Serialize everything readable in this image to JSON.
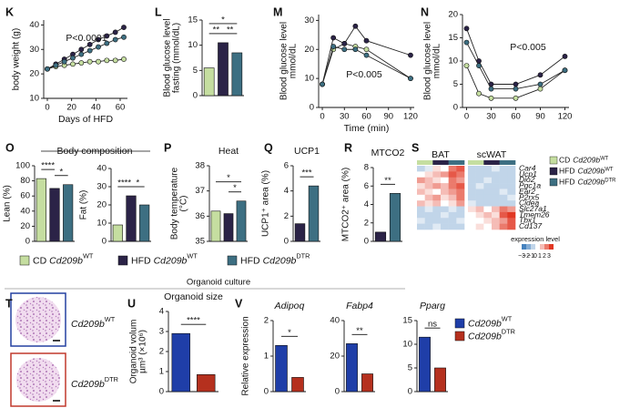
{
  "chart_data": [
    {
      "type": "line",
      "panel": "K",
      "xlabel": "Days of HFD",
      "ylabel": [
        "body weight (g)"
      ],
      "annotation": "P<0.0001",
      "x": [
        0,
        7,
        14,
        21,
        28,
        35,
        42,
        49,
        56,
        63
      ],
      "xlim": [
        -3,
        66
      ],
      "xticks": [
        0,
        20,
        40,
        60
      ],
      "ylim": [
        10,
        42
      ],
      "yticks": [
        10,
        20,
        30,
        40
      ],
      "series": [
        {
          "color": "#c5dea0",
          "values": [
            22,
            23,
            23.5,
            24,
            24.5,
            25,
            25,
            25.5,
            25.5,
            26
          ]
        },
        {
          "color": "#2b2347",
          "values": [
            22,
            24,
            26,
            28,
            30,
            32,
            34,
            35.5,
            37,
            39
          ]
        },
        {
          "color": "#3d6f82",
          "values": [
            22,
            23.5,
            25,
            26.5,
            28,
            29.5,
            31,
            32.5,
            34,
            35
          ]
        }
      ]
    },
    {
      "type": "bar",
      "panel": "L",
      "ylabel": [
        "Blood glucose level",
        "fasting (mmol/dL)"
      ],
      "ylim": [
        0,
        15
      ],
      "yticks": [
        0,
        5,
        10,
        15
      ],
      "values": [
        5.5,
        10.5,
        8.5
      ],
      "colors": [
        "#c5dea0",
        "#2b2347",
        "#3d6f82"
      ],
      "significance": [
        {
          "label": "**",
          "bars": [
            0,
            1
          ]
        },
        {
          "label": "**",
          "bars": [
            1,
            2
          ]
        },
        {
          "label": "*",
          "bars": [
            0,
            2
          ]
        }
      ]
    },
    {
      "type": "line",
      "panel": "M",
      "xlabel": "Time (min)",
      "ylabel": [
        "Blood glucose level",
        "mmol/dL"
      ],
      "annotation": "P<0.005",
      "x": [
        0,
        15,
        30,
        45,
        60,
        120
      ],
      "xlim": [
        -5,
        125
      ],
      "xticks": [
        0,
        30,
        60,
        90,
        120
      ],
      "ylim": [
        0,
        32
      ],
      "yticks": [
        0,
        10,
        20,
        30
      ],
      "series": [
        {
          "color": "#c5dea0",
          "values": [
            8,
            20,
            22,
            21,
            20,
            10
          ]
        },
        {
          "color": "#2b2347",
          "values": [
            8,
            24,
            22,
            28,
            23,
            18
          ]
        },
        {
          "color": "#3d6f82",
          "values": [
            8,
            21,
            20,
            20,
            18,
            10
          ]
        }
      ]
    },
    {
      "type": "line",
      "panel": "N",
      "ylabel": [
        "Blood glucose level",
        "mmol/dL"
      ],
      "annotation": "P<0.005",
      "x": [
        0,
        15,
        30,
        60,
        90,
        120
      ],
      "xlim": [
        -5,
        125
      ],
      "xticks": [
        0,
        30,
        60,
        90,
        120
      ],
      "ylim": [
        0,
        20
      ],
      "yticks": [
        0,
        5,
        10,
        15,
        20
      ],
      "series": [
        {
          "color": "#c5dea0",
          "values": [
            9,
            3,
            2,
            2,
            4,
            8
          ]
        },
        {
          "color": "#2b2347",
          "values": [
            17,
            10,
            5,
            5,
            7,
            11
          ]
        },
        {
          "color": "#3d6f82",
          "values": [
            14,
            9,
            4,
            4,
            5,
            8
          ]
        }
      ]
    },
    {
      "type": "bar",
      "panel": "O",
      "title": "Body composition",
      "ylabel": [
        "Lean (%)"
      ],
      "ylim": [
        0,
        100
      ],
      "yticks": [
        0,
        20,
        40,
        60,
        80,
        100
      ],
      "values": [
        83,
        70,
        75
      ],
      "colors": [
        "#c5dea0",
        "#2b2347",
        "#3d6f82"
      ],
      "significance": [
        {
          "label": "****",
          "bars": [
            0,
            1
          ]
        },
        {
          "label": "*",
          "bars": [
            1,
            2
          ]
        }
      ]
    },
    {
      "type": "bar",
      "ylabel": [
        "Fat (%)"
      ],
      "ylim": [
        0,
        40
      ],
      "yticks": [
        0,
        10,
        20,
        30,
        40
      ],
      "values": [
        9,
        25,
        20
      ],
      "colors": [
        "#c5dea0",
        "#2b2347",
        "#3d6f82"
      ],
      "significance": [
        {
          "label": "****",
          "bars": [
            0,
            1
          ]
        },
        {
          "label": "*",
          "bars": [
            1,
            2
          ]
        }
      ]
    },
    {
      "type": "bar",
      "panel": "P",
      "title": "Heat",
      "ylabel": [
        "Body temperature",
        "(°C)"
      ],
      "ylim": [
        35,
        38
      ],
      "yticks": [
        35,
        36,
        37,
        38
      ],
      "values": [
        36.2,
        36.1,
        36.6
      ],
      "colors": [
        "#c5dea0",
        "#2b2347",
        "#3d6f82"
      ],
      "significance": [
        {
          "label": "*",
          "bars": [
            1,
            2
          ]
        },
        {
          "label": "*",
          "bars": [
            0,
            2
          ]
        }
      ]
    },
    {
      "type": "bar",
      "panel": "Q",
      "title": "UCP1",
      "ylabel": [
        "UCP1⁺ area (%)"
      ],
      "ylim": [
        0,
        6
      ],
      "yticks": [
        0,
        2,
        4,
        6
      ],
      "values": [
        1.4,
        4.4
      ],
      "colors": [
        "#2b2347",
        "#3d6f82"
      ],
      "significance": [
        {
          "label": "***",
          "bars": [
            0,
            1
          ]
        }
      ]
    },
    {
      "type": "bar",
      "panel": "R",
      "title": "MTCO2",
      "ylabel": [
        "MTCO2⁺ area (%)"
      ],
      "ylim": [
        0,
        8
      ],
      "yticks": [
        0,
        2,
        4,
        6,
        8
      ],
      "values": [
        1,
        5.2
      ],
      "colors": [
        "#2b2347",
        "#3d6f82"
      ],
      "significance": [
        {
          "label": "**",
          "bars": [
            0,
            1
          ]
        }
      ]
    },
    {
      "type": "heatmap",
      "panel": "S",
      "column_groups": [
        "BAT",
        "scWAT"
      ],
      "rows": [
        "Car4",
        "Ucp1",
        "Dio2",
        "Pgc1a",
        "Ear2",
        "P2rx5",
        "Cidea",
        "Slc27a1",
        "Tmem26",
        "Tbx1",
        "Cd137"
      ],
      "values": [
        [
          -1,
          -0.5,
          0.5,
          0,
          2,
          2.5,
          -1,
          -1,
          -1,
          -0.5,
          -1,
          -1
        ],
        [
          0,
          0.5,
          1,
          1.5,
          2.5,
          2,
          -1,
          -1,
          -1,
          -1,
          -1,
          -1
        ],
        [
          1.5,
          1,
          0.5,
          0,
          2,
          1.5,
          -1,
          -1,
          -0.5,
          -1,
          -1,
          -1
        ],
        [
          0.5,
          1,
          1.5,
          1,
          2,
          2.5,
          -1,
          -0.5,
          -1,
          -1,
          -1,
          -1
        ],
        [
          1,
          0.5,
          0,
          1,
          1.5,
          2,
          -1,
          -1,
          -1,
          -1,
          -0.5,
          -1
        ],
        [
          0,
          1,
          1.5,
          0.5,
          1,
          2,
          -1,
          -1,
          -1,
          -1,
          -1,
          -0.5
        ],
        [
          1,
          0.5,
          1,
          0,
          0.5,
          1.5,
          -0.5,
          -1,
          -1,
          -1,
          -1,
          -1
        ],
        [
          -1,
          -0.5,
          -1,
          -1,
          -0.5,
          -1,
          0.5,
          1,
          0,
          1,
          2,
          1.5
        ],
        [
          -1,
          -1,
          -1,
          -0.5,
          -1,
          -1,
          0,
          0.5,
          1,
          0.5,
          2.5,
          3
        ],
        [
          -0.5,
          -1,
          -1,
          -1,
          -1,
          -0.5,
          0,
          0,
          0.5,
          1,
          1.5,
          2.5
        ],
        [
          -1,
          -1,
          -0.5,
          -1,
          -1,
          -1,
          0,
          0.5,
          0,
          1,
          2,
          2.5
        ]
      ],
      "colorbar_label": "expression level",
      "colorbar_ticks": [
        {
          "value": -3,
          "label": "−3"
        },
        {
          "value": -2,
          "label": "−2"
        },
        {
          "value": -1,
          "label": "−1"
        },
        0,
        1,
        2,
        3
      ]
    },
    {
      "type": "bar",
      "panel": "U",
      "title": "Organoid size",
      "ylabel": [
        "Organoid volum",
        "µm³ (×10⁶)"
      ],
      "ylim": [
        0,
        4
      ],
      "yticks": [
        0,
        1,
        2,
        3,
        4
      ],
      "values": [
        2.9,
        0.85
      ],
      "colors": [
        "#1f3ea8",
        "#b5301e"
      ],
      "significance": [
        {
          "label": "****",
          "bars": [
            0,
            1
          ]
        }
      ]
    },
    {
      "type": "bar",
      "panel": "V",
      "title": "Adipoq",
      "ylabel": [
        "Relative expression"
      ],
      "ylim": [
        0,
        2
      ],
      "yticks": [
        0,
        1,
        2
      ],
      "values": [
        1.3,
        0.4
      ],
      "colors": [
        "#1f3ea8",
        "#b5301e"
      ],
      "significance": [
        {
          "label": "*",
          "bars": [
            0,
            1
          ]
        }
      ]
    },
    {
      "type": "bar",
      "title": "Fabp4",
      "ylim": [
        0,
        40
      ],
      "yticks": [
        0,
        20,
        40
      ],
      "values": [
        27,
        10
      ],
      "colors": [
        "#1f3ea8",
        "#b5301e"
      ],
      "significance": [
        {
          "label": "**",
          "bars": [
            0,
            1
          ]
        }
      ]
    },
    {
      "type": "bar",
      "title": "Pparg",
      "ylim": [
        0,
        15
      ],
      "yticks": [
        0,
        5,
        10,
        15
      ],
      "values": [
        11.5,
        5
      ],
      "colors": [
        "#1f3ea8",
        "#b5301e"
      ],
      "significance": [
        {
          "label": "ns",
          "bars": [
            0,
            1
          ]
        }
      ]
    }
  ],
  "groups": [
    {
      "prefix": "CD",
      "gene": "Cd209b",
      "sup": "WT",
      "color": "#c5dea0"
    },
    {
      "prefix": "HFD",
      "gene": "Cd209b",
      "sup": "WT",
      "color": "#2b2347"
    },
    {
      "prefix": "HFD",
      "gene": "Cd209b",
      "sup": "DTR",
      "color": "#3d6f82"
    }
  ],
  "section_title": "Organoid culture",
  "images": {
    "panel": "T",
    "labels": [
      {
        "gene": "Cd209b",
        "sup": "WT"
      },
      {
        "gene": "Cd209b",
        "sup": "DTR"
      }
    ]
  },
  "organoid_groups": [
    {
      "gene": "Cd209b",
      "sup": "WT",
      "color": "#1f3ea8"
    },
    {
      "gene": "Cd209b",
      "sup": "DTR",
      "color": "#b5301e"
    }
  ]
}
